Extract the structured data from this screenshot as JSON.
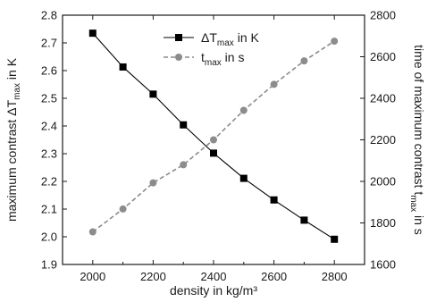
{
  "chart_data": {
    "type": "line",
    "xlabel": "density in kg/m³",
    "ylabel_left": "maximum contrast ΔT_max in K",
    "ylabel_right": "time of maximum contrast t_max in s",
    "xlim": [
      1900,
      2900
    ],
    "ylim_left": [
      1.9,
      2.8
    ],
    "ylim_right": [
      1600,
      2800
    ],
    "x_ticks": [
      2000,
      2200,
      2400,
      2600,
      2800
    ],
    "y_ticks_left": [
      1.9,
      2.0,
      2.1,
      2.2,
      2.3,
      2.4,
      2.5,
      2.6,
      2.7,
      2.8
    ],
    "y_ticks_right": [
      1600,
      1800,
      2000,
      2200,
      2400,
      2600,
      2800
    ],
    "legend_position": "top-right",
    "series": [
      {
        "name": "ΔT_max in K",
        "axis": "left",
        "color": "#000000",
        "marker": "square",
        "line": "solid",
        "x": [
          2000,
          2100,
          2200,
          2300,
          2400,
          2500,
          2600,
          2700,
          2800
        ],
        "values": [
          2.735,
          2.613,
          2.515,
          2.404,
          2.302,
          2.211,
          2.133,
          2.06,
          1.991
        ]
      },
      {
        "name": "t_max in s",
        "axis": "right",
        "color": "#8c8c8c",
        "marker": "circle",
        "line": "dashed",
        "x": [
          2000,
          2100,
          2200,
          2300,
          2400,
          2500,
          2600,
          2700,
          2800
        ],
        "values": [
          1757,
          1867,
          1993,
          2080,
          2200,
          2342,
          2467,
          2580,
          2675
        ]
      }
    ]
  }
}
